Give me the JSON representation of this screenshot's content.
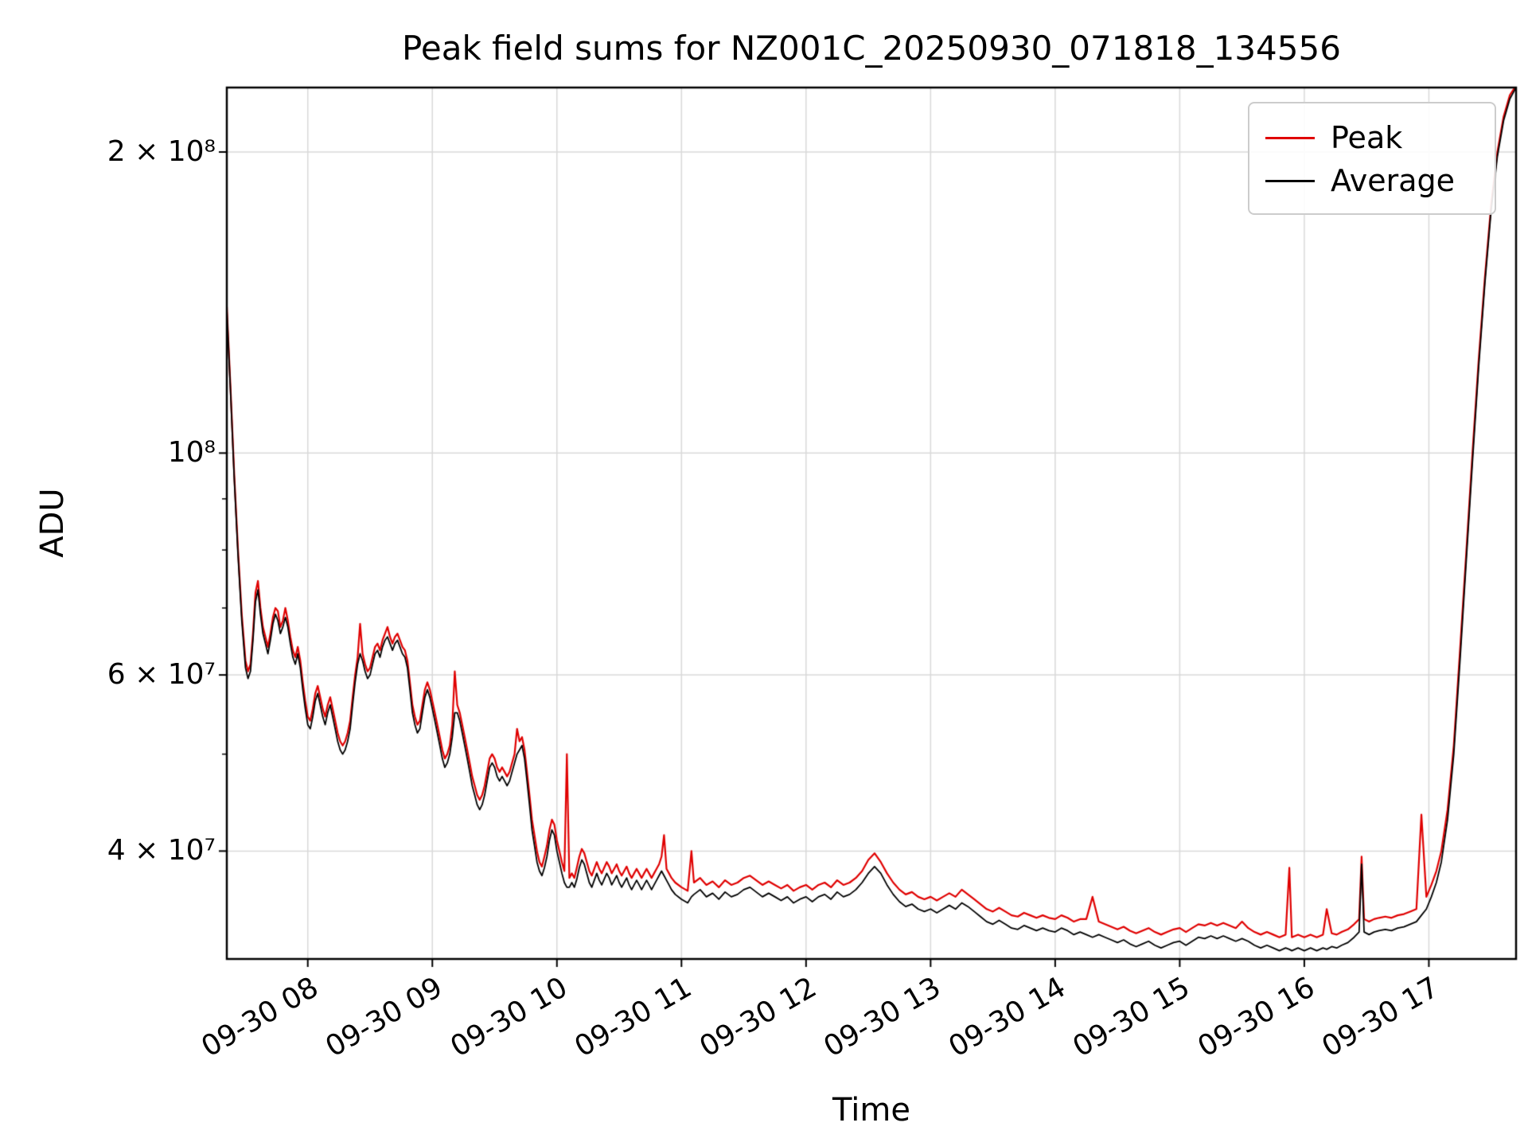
{
  "chart_data": {
    "type": "line",
    "title": "Peak field sums for NZ001C_20250930_071818_134556",
    "xlabel": "Time",
    "ylabel": "ADU",
    "yscale": "log",
    "ylim": [
      31200000,
      232000000
    ],
    "xlim_hours": [
      7.35,
      17.7
    ],
    "grid": true,
    "x_tick_hours": [
      8,
      9,
      10,
      11,
      12,
      13,
      14,
      15,
      16,
      17
    ],
    "x_tick_labels": [
      "09-30 08",
      "09-30 09",
      "09-30 10",
      "09-30 11",
      "09-30 12",
      "09-30 13",
      "09-30 14",
      "09-30 15",
      "09-30 16",
      "09-30 17"
    ],
    "y_tick_values": [
      40000000,
      60000000,
      100000000,
      200000000
    ],
    "y_tick_labels": [
      "4 × 10⁷",
      "6 × 10⁷",
      "10⁸",
      "2 × 10⁸"
    ],
    "y_minor_tick_values": [
      50000000,
      70000000,
      80000000,
      90000000
    ],
    "legend": {
      "position": "upper right",
      "entries": [
        {
          "label": "Peak",
          "color": "#e00000"
        },
        {
          "label": "Average",
          "color": "#000000"
        }
      ]
    },
    "value_unit": 10000000,
    "columns": [
      "time_hour",
      "average_e7",
      "peak_e7"
    ],
    "points": [
      [
        7.35,
        13.9,
        14.0
      ],
      [
        7.38,
        11.5,
        11.6
      ],
      [
        7.41,
        9.4,
        9.5
      ],
      [
        7.44,
        7.9,
        8.0
      ],
      [
        7.47,
        6.8,
        6.9
      ],
      [
        7.5,
        6.1,
        6.2
      ],
      [
        7.52,
        5.95,
        6.05
      ],
      [
        7.54,
        6.05,
        6.15
      ],
      [
        7.56,
        6.5,
        6.6
      ],
      [
        7.58,
        7.1,
        7.25
      ],
      [
        7.6,
        7.3,
        7.45
      ],
      [
        7.62,
        6.9,
        7.0
      ],
      [
        7.64,
        6.6,
        6.7
      ],
      [
        7.66,
        6.45,
        6.55
      ],
      [
        7.68,
        6.3,
        6.4
      ],
      [
        7.7,
        6.5,
        6.6
      ],
      [
        7.72,
        6.75,
        6.85
      ],
      [
        7.74,
        6.9,
        7.0
      ],
      [
        7.76,
        6.8,
        6.95
      ],
      [
        7.78,
        6.6,
        6.7
      ],
      [
        7.8,
        6.7,
        6.8
      ],
      [
        7.82,
        6.85,
        7.0
      ],
      [
        7.84,
        6.7,
        6.8
      ],
      [
        7.86,
        6.45,
        6.55
      ],
      [
        7.88,
        6.25,
        6.35
      ],
      [
        7.9,
        6.15,
        6.25
      ],
      [
        7.92,
        6.3,
        6.4
      ],
      [
        7.94,
        6.1,
        6.2
      ],
      [
        7.96,
        5.8,
        5.9
      ],
      [
        7.98,
        5.55,
        5.65
      ],
      [
        8.0,
        5.35,
        5.45
      ],
      [
        8.02,
        5.3,
        5.4
      ],
      [
        8.04,
        5.45,
        5.55
      ],
      [
        8.06,
        5.65,
        5.75
      ],
      [
        8.08,
        5.75,
        5.85
      ],
      [
        8.1,
        5.6,
        5.7
      ],
      [
        8.12,
        5.45,
        5.55
      ],
      [
        8.14,
        5.35,
        5.45
      ],
      [
        8.16,
        5.5,
        5.6
      ],
      [
        8.18,
        5.6,
        5.7
      ],
      [
        8.2,
        5.45,
        5.55
      ],
      [
        8.22,
        5.3,
        5.4
      ],
      [
        8.24,
        5.15,
        5.25
      ],
      [
        8.26,
        5.05,
        5.15
      ],
      [
        8.28,
        5.0,
        5.1
      ],
      [
        8.3,
        5.05,
        5.15
      ],
      [
        8.32,
        5.15,
        5.25
      ],
      [
        8.34,
        5.3,
        5.4
      ],
      [
        8.36,
        5.6,
        5.7
      ],
      [
        8.38,
        5.9,
        6.0
      ],
      [
        8.4,
        6.15,
        6.25
      ],
      [
        8.42,
        6.3,
        6.75
      ],
      [
        8.44,
        6.2,
        6.3
      ],
      [
        8.46,
        6.05,
        6.15
      ],
      [
        8.48,
        5.95,
        6.05
      ],
      [
        8.5,
        6.0,
        6.1
      ],
      [
        8.52,
        6.15,
        6.25
      ],
      [
        8.54,
        6.3,
        6.4
      ],
      [
        8.56,
        6.35,
        6.45
      ],
      [
        8.58,
        6.25,
        6.35
      ],
      [
        8.6,
        6.4,
        6.5
      ],
      [
        8.62,
        6.5,
        6.6
      ],
      [
        8.64,
        6.55,
        6.7
      ],
      [
        8.66,
        6.45,
        6.55
      ],
      [
        8.68,
        6.35,
        6.45
      ],
      [
        8.7,
        6.45,
        6.55
      ],
      [
        8.72,
        6.5,
        6.6
      ],
      [
        8.74,
        6.4,
        6.5
      ],
      [
        8.76,
        6.3,
        6.4
      ],
      [
        8.78,
        6.25,
        6.35
      ],
      [
        8.8,
        6.1,
        6.2
      ],
      [
        8.82,
        5.8,
        5.9
      ],
      [
        8.84,
        5.5,
        5.6
      ],
      [
        8.86,
        5.35,
        5.45
      ],
      [
        8.88,
        5.25,
        5.35
      ],
      [
        8.9,
        5.3,
        5.4
      ],
      [
        8.92,
        5.5,
        5.6
      ],
      [
        8.94,
        5.7,
        5.8
      ],
      [
        8.96,
        5.8,
        5.9
      ],
      [
        8.98,
        5.7,
        5.8
      ],
      [
        9.0,
        5.55,
        5.65
      ],
      [
        9.02,
        5.4,
        5.5
      ],
      [
        9.04,
        5.25,
        5.35
      ],
      [
        9.06,
        5.1,
        5.2
      ],
      [
        9.08,
        4.95,
        5.05
      ],
      [
        9.1,
        4.85,
        4.95
      ],
      [
        9.12,
        4.9,
        5.0
      ],
      [
        9.14,
        5.0,
        5.1
      ],
      [
        9.16,
        5.2,
        5.35
      ],
      [
        9.18,
        5.5,
        6.05
      ],
      [
        9.2,
        5.5,
        5.6
      ],
      [
        9.22,
        5.4,
        5.5
      ],
      [
        9.24,
        5.25,
        5.35
      ],
      [
        9.26,
        5.1,
        5.2
      ],
      [
        9.28,
        4.95,
        5.05
      ],
      [
        9.3,
        4.8,
        4.9
      ],
      [
        9.32,
        4.65,
        4.75
      ],
      [
        9.34,
        4.55,
        4.65
      ],
      [
        9.36,
        4.45,
        4.55
      ],
      [
        9.38,
        4.4,
        4.5
      ],
      [
        9.4,
        4.45,
        4.55
      ],
      [
        9.42,
        4.55,
        4.65
      ],
      [
        9.44,
        4.7,
        4.8
      ],
      [
        9.46,
        4.85,
        4.95
      ],
      [
        9.48,
        4.9,
        5.0
      ],
      [
        9.5,
        4.85,
        4.95
      ],
      [
        9.52,
        4.75,
        4.85
      ],
      [
        9.54,
        4.7,
        4.8
      ],
      [
        9.56,
        4.75,
        4.85
      ],
      [
        9.58,
        4.7,
        4.8
      ],
      [
        9.6,
        4.65,
        4.75
      ],
      [
        9.62,
        4.7,
        4.8
      ],
      [
        9.64,
        4.8,
        4.9
      ],
      [
        9.66,
        4.9,
        5.0
      ],
      [
        9.68,
        5.0,
        5.3
      ],
      [
        9.7,
        5.05,
        5.15
      ],
      [
        9.72,
        5.1,
        5.2
      ],
      [
        9.74,
        4.95,
        5.05
      ],
      [
        9.76,
        4.7,
        4.8
      ],
      [
        9.78,
        4.45,
        4.55
      ],
      [
        9.8,
        4.2,
        4.3
      ],
      [
        9.82,
        4.05,
        4.15
      ],
      [
        9.84,
        3.9,
        4.0
      ],
      [
        9.86,
        3.82,
        3.9
      ],
      [
        9.88,
        3.78,
        3.86
      ],
      [
        9.9,
        3.85,
        3.95
      ],
      [
        9.92,
        3.95,
        4.05
      ],
      [
        9.94,
        4.1,
        4.2
      ],
      [
        9.96,
        4.2,
        4.3
      ],
      [
        9.98,
        4.15,
        4.25
      ],
      [
        10.0,
        4.0,
        4.1
      ],
      [
        10.02,
        3.9,
        4.0
      ],
      [
        10.04,
        3.8,
        3.9
      ],
      [
        10.06,
        3.72,
        3.82
      ],
      [
        10.08,
        3.68,
        5.0
      ],
      [
        10.1,
        3.68,
        3.76
      ],
      [
        10.12,
        3.72,
        3.8
      ],
      [
        10.14,
        3.68,
        3.76
      ],
      [
        10.16,
        3.75,
        3.85
      ],
      [
        10.18,
        3.85,
        3.95
      ],
      [
        10.2,
        3.92,
        4.02
      ],
      [
        10.22,
        3.88,
        3.98
      ],
      [
        10.24,
        3.8,
        3.9
      ],
      [
        10.26,
        3.72,
        3.82
      ],
      [
        10.28,
        3.68,
        3.78
      ],
      [
        10.3,
        3.74,
        3.84
      ],
      [
        10.32,
        3.8,
        3.9
      ],
      [
        10.34,
        3.74,
        3.84
      ],
      [
        10.36,
        3.7,
        3.8
      ],
      [
        10.38,
        3.75,
        3.85
      ],
      [
        10.4,
        3.8,
        3.9
      ],
      [
        10.42,
        3.76,
        3.86
      ],
      [
        10.44,
        3.7,
        3.8
      ],
      [
        10.46,
        3.74,
        3.84
      ],
      [
        10.48,
        3.78,
        3.88
      ],
      [
        10.5,
        3.72,
        3.82
      ],
      [
        10.52,
        3.68,
        3.78
      ],
      [
        10.54,
        3.72,
        3.82
      ],
      [
        10.56,
        3.76,
        3.86
      ],
      [
        10.58,
        3.7,
        3.8
      ],
      [
        10.6,
        3.66,
        3.76
      ],
      [
        10.62,
        3.7,
        3.8
      ],
      [
        10.64,
        3.74,
        3.84
      ],
      [
        10.66,
        3.7,
        3.8
      ],
      [
        10.68,
        3.66,
        3.76
      ],
      [
        10.7,
        3.7,
        3.8
      ],
      [
        10.72,
        3.74,
        3.84
      ],
      [
        10.74,
        3.7,
        3.8
      ],
      [
        10.76,
        3.66,
        3.76
      ],
      [
        10.78,
        3.7,
        3.8
      ],
      [
        10.8,
        3.74,
        3.84
      ],
      [
        10.82,
        3.78,
        3.88
      ],
      [
        10.84,
        3.82,
        3.95
      ],
      [
        10.86,
        3.78,
        4.15
      ],
      [
        10.88,
        3.74,
        3.84
      ],
      [
        10.9,
        3.7,
        3.8
      ],
      [
        10.92,
        3.66,
        3.76
      ],
      [
        10.95,
        3.62,
        3.72
      ],
      [
        11.0,
        3.58,
        3.68
      ],
      [
        11.05,
        3.55,
        3.65
      ],
      [
        11.08,
        3.6,
        4.0
      ],
      [
        11.1,
        3.62,
        3.72
      ],
      [
        11.15,
        3.66,
        3.76
      ],
      [
        11.2,
        3.6,
        3.7
      ],
      [
        11.25,
        3.63,
        3.73
      ],
      [
        11.3,
        3.58,
        3.68
      ],
      [
        11.35,
        3.64,
        3.74
      ],
      [
        11.4,
        3.6,
        3.7
      ],
      [
        11.45,
        3.62,
        3.72
      ],
      [
        11.5,
        3.66,
        3.76
      ],
      [
        11.55,
        3.68,
        3.78
      ],
      [
        11.6,
        3.64,
        3.74
      ],
      [
        11.65,
        3.6,
        3.7
      ],
      [
        11.7,
        3.63,
        3.73
      ],
      [
        11.75,
        3.6,
        3.7
      ],
      [
        11.8,
        3.57,
        3.67
      ],
      [
        11.85,
        3.6,
        3.7
      ],
      [
        11.9,
        3.55,
        3.65
      ],
      [
        11.95,
        3.58,
        3.68
      ],
      [
        12.0,
        3.6,
        3.7
      ],
      [
        12.05,
        3.56,
        3.66
      ],
      [
        12.1,
        3.6,
        3.7
      ],
      [
        12.15,
        3.62,
        3.72
      ],
      [
        12.2,
        3.58,
        3.68
      ],
      [
        12.25,
        3.64,
        3.74
      ],
      [
        12.3,
        3.6,
        3.7
      ],
      [
        12.35,
        3.62,
        3.72
      ],
      [
        12.4,
        3.66,
        3.76
      ],
      [
        12.45,
        3.72,
        3.82
      ],
      [
        12.5,
        3.8,
        3.92
      ],
      [
        12.55,
        3.86,
        3.98
      ],
      [
        12.6,
        3.8,
        3.9
      ],
      [
        12.65,
        3.7,
        3.8
      ],
      [
        12.7,
        3.62,
        3.72
      ],
      [
        12.75,
        3.56,
        3.66
      ],
      [
        12.8,
        3.52,
        3.62
      ],
      [
        12.85,
        3.54,
        3.64
      ],
      [
        12.9,
        3.5,
        3.6
      ],
      [
        12.95,
        3.48,
        3.58
      ],
      [
        13.0,
        3.5,
        3.6
      ],
      [
        13.05,
        3.47,
        3.57
      ],
      [
        13.1,
        3.5,
        3.6
      ],
      [
        13.15,
        3.53,
        3.63
      ],
      [
        13.2,
        3.5,
        3.6
      ],
      [
        13.25,
        3.55,
        3.66
      ],
      [
        13.3,
        3.52,
        3.62
      ],
      [
        13.35,
        3.48,
        3.58
      ],
      [
        13.4,
        3.44,
        3.54
      ],
      [
        13.45,
        3.4,
        3.5
      ],
      [
        13.5,
        3.38,
        3.48
      ],
      [
        13.55,
        3.41,
        3.51
      ],
      [
        13.6,
        3.38,
        3.48
      ],
      [
        13.65,
        3.35,
        3.45
      ],
      [
        13.7,
        3.34,
        3.44
      ],
      [
        13.75,
        3.37,
        3.47
      ],
      [
        13.8,
        3.35,
        3.45
      ],
      [
        13.85,
        3.33,
        3.43
      ],
      [
        13.9,
        3.35,
        3.45
      ],
      [
        13.95,
        3.33,
        3.43
      ],
      [
        14.0,
        3.32,
        3.42
      ],
      [
        14.05,
        3.35,
        3.45
      ],
      [
        14.1,
        3.33,
        3.43
      ],
      [
        14.15,
        3.3,
        3.4
      ],
      [
        14.2,
        3.32,
        3.42
      ],
      [
        14.25,
        3.3,
        3.42
      ],
      [
        14.3,
        3.28,
        3.6
      ],
      [
        14.35,
        3.3,
        3.4
      ],
      [
        14.4,
        3.28,
        3.38
      ],
      [
        14.45,
        3.26,
        3.36
      ],
      [
        14.5,
        3.24,
        3.34
      ],
      [
        14.55,
        3.26,
        3.36
      ],
      [
        14.6,
        3.23,
        3.33
      ],
      [
        14.65,
        3.21,
        3.31
      ],
      [
        14.7,
        3.23,
        3.33
      ],
      [
        14.75,
        3.25,
        3.35
      ],
      [
        14.8,
        3.22,
        3.32
      ],
      [
        14.85,
        3.2,
        3.3
      ],
      [
        14.9,
        3.22,
        3.32
      ],
      [
        14.95,
        3.24,
        3.34
      ],
      [
        15.0,
        3.25,
        3.35
      ],
      [
        15.05,
        3.22,
        3.32
      ],
      [
        15.1,
        3.25,
        3.35
      ],
      [
        15.15,
        3.28,
        3.38
      ],
      [
        15.2,
        3.27,
        3.37
      ],
      [
        15.25,
        3.29,
        3.39
      ],
      [
        15.3,
        3.27,
        3.37
      ],
      [
        15.35,
        3.29,
        3.39
      ],
      [
        15.4,
        3.27,
        3.37
      ],
      [
        15.45,
        3.25,
        3.35
      ],
      [
        15.5,
        3.27,
        3.4
      ],
      [
        15.55,
        3.25,
        3.35
      ],
      [
        15.6,
        3.22,
        3.32
      ],
      [
        15.65,
        3.2,
        3.3
      ],
      [
        15.7,
        3.22,
        3.32
      ],
      [
        15.75,
        3.2,
        3.3
      ],
      [
        15.8,
        3.18,
        3.28
      ],
      [
        15.85,
        3.2,
        3.3
      ],
      [
        15.88,
        3.19,
        3.85
      ],
      [
        15.9,
        3.18,
        3.28
      ],
      [
        15.95,
        3.2,
        3.3
      ],
      [
        16.0,
        3.18,
        3.28
      ],
      [
        16.05,
        3.2,
        3.3
      ],
      [
        16.1,
        3.18,
        3.28
      ],
      [
        16.15,
        3.2,
        3.3
      ],
      [
        16.18,
        3.19,
        3.5
      ],
      [
        16.22,
        3.21,
        3.31
      ],
      [
        16.26,
        3.2,
        3.3
      ],
      [
        16.3,
        3.22,
        3.32
      ],
      [
        16.35,
        3.24,
        3.34
      ],
      [
        16.4,
        3.28,
        3.38
      ],
      [
        16.44,
        3.32,
        3.42
      ],
      [
        16.46,
        3.88,
        3.95
      ],
      [
        16.48,
        3.32,
        3.42
      ],
      [
        16.52,
        3.3,
        3.4
      ],
      [
        16.56,
        3.32,
        3.42
      ],
      [
        16.6,
        3.33,
        3.43
      ],
      [
        16.65,
        3.34,
        3.44
      ],
      [
        16.7,
        3.33,
        3.43
      ],
      [
        16.75,
        3.35,
        3.45
      ],
      [
        16.8,
        3.36,
        3.46
      ],
      [
        16.85,
        3.38,
        3.48
      ],
      [
        16.9,
        3.4,
        3.5
      ],
      [
        16.94,
        3.45,
        4.35
      ],
      [
        16.98,
        3.5,
        3.6
      ],
      [
        17.02,
        3.6,
        3.7
      ],
      [
        17.06,
        3.72,
        3.82
      ],
      [
        17.1,
        3.9,
        4.0
      ],
      [
        17.15,
        4.3,
        4.4
      ],
      [
        17.2,
        5.0,
        5.1
      ],
      [
        17.25,
        6.2,
        6.35
      ],
      [
        17.3,
        7.8,
        7.95
      ],
      [
        17.35,
        9.8,
        10.0
      ],
      [
        17.4,
        12.2,
        12.4
      ],
      [
        17.45,
        14.8,
        15.0
      ],
      [
        17.5,
        17.5,
        17.7
      ],
      [
        17.55,
        19.8,
        20.0
      ],
      [
        17.6,
        21.5,
        21.7
      ],
      [
        17.65,
        22.6,
        22.8
      ],
      [
        17.7,
        23.2,
        23.3
      ]
    ]
  }
}
